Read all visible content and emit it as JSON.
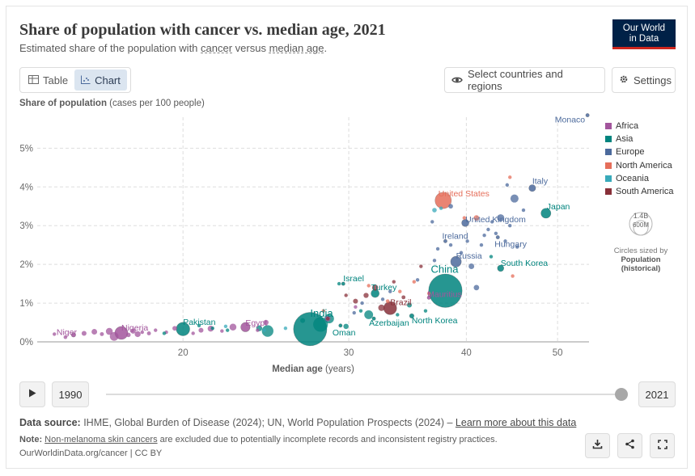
{
  "title": "Share of population with cancer vs. median age, 2021",
  "subtitle": {
    "prefix": "Estimated share of the population with ",
    "link1": "cancer",
    "middle": " versus ",
    "link2": "median age",
    "suffix": "."
  },
  "logo": {
    "line1": "Our World",
    "line2": "in Data"
  },
  "tabs": {
    "table_label": "Table",
    "chart_label": "Chart"
  },
  "buttons": {
    "select_label": "Select countries and regions",
    "settings_label": "Settings"
  },
  "y_axis_label": {
    "bold": "Share of population",
    "rest": " (cases per 100 people)"
  },
  "legend": [
    {
      "label": "Africa",
      "color": "#a2559c"
    },
    {
      "label": "Asia",
      "color": "#00847e"
    },
    {
      "label": "Europe",
      "color": "#4c6a9c"
    },
    {
      "label": "North America",
      "color": "#e56e5a"
    },
    {
      "label": "Oceania",
      "color": "#38aaba"
    },
    {
      "label": "South America",
      "color": "#883039"
    }
  ],
  "size_legend": {
    "big": "1.4B",
    "small": "600M",
    "caption": "Circles sized by",
    "variable": "Population",
    "variable_note": "(historical)"
  },
  "timeline": {
    "start_year": "1990",
    "end_year": "2021",
    "position": 1.0
  },
  "source": {
    "label": "Data source:",
    "text": " IHME, Global Burden of Disease (2024); UN, World Population Prospects (2024) – ",
    "link": "Learn more about this data"
  },
  "note": {
    "label": "Note:",
    "link": "Non-melanoma skin cancers",
    "text": " are excluded due to potentially incomplete records and inconsistent registry practices."
  },
  "footer": "OurWorldinData.org/cancer | CC BY",
  "chart_data": {
    "type": "scatter",
    "title": "Share of population with cancer vs. median age, 2021",
    "xlabel": "Median age (years)",
    "ylabel": "Share of population (cases per 100 people)",
    "x_scale": "log",
    "xlim": [
      14,
      54
    ],
    "ylim": [
      0,
      5.8
    ],
    "xticks": [
      20,
      30,
      40,
      50
    ],
    "yticks": [
      0,
      1,
      2,
      3,
      4,
      5
    ],
    "ytick_labels": [
      "0%",
      "1%",
      "2%",
      "3%",
      "4%",
      "5%"
    ],
    "labeled_points": [
      {
        "name": "Monaco",
        "region": "Europe",
        "x": 53.8,
        "y": 5.85,
        "pop": 0.04
      },
      {
        "name": "Italy",
        "region": "Europe",
        "x": 47.0,
        "y": 3.97,
        "pop": 59
      },
      {
        "name": "United States",
        "region": "North America",
        "x": 37.8,
        "y": 3.65,
        "pop": 337
      },
      {
        "name": "Japan",
        "region": "Asia",
        "x": 48.6,
        "y": 3.32,
        "pop": 124
      },
      {
        "name": "United Kingdom",
        "region": "Europe",
        "x": 39.9,
        "y": 3.07,
        "pop": 68
      },
      {
        "name": "Ireland",
        "region": "Europe",
        "x": 38.0,
        "y": 2.6,
        "pop": 5
      },
      {
        "name": "Hungary",
        "region": "Europe",
        "x": 43.2,
        "y": 2.7,
        "pop": 10
      },
      {
        "name": "Russia",
        "region": "Europe",
        "x": 39.0,
        "y": 2.07,
        "pop": 145
      },
      {
        "name": "South Korea",
        "region": "Asia",
        "x": 43.5,
        "y": 1.9,
        "pop": 52
      },
      {
        "name": "Israel",
        "region": "Asia",
        "x": 29.6,
        "y": 1.5,
        "pop": 9
      },
      {
        "name": "China",
        "region": "Asia",
        "x": 38.0,
        "y": 1.32,
        "pop": 1420
      },
      {
        "name": "Turkey",
        "region": "Asia",
        "x": 32.0,
        "y": 1.25,
        "pop": 85
      },
      {
        "name": "Mauritius",
        "region": "Africa",
        "x": 36.5,
        "y": 1.14,
        "pop": 1.3
      },
      {
        "name": "Brazil",
        "region": "South America",
        "x": 33.2,
        "y": 0.87,
        "pop": 214
      },
      {
        "name": "North Korea",
        "region": "Asia",
        "x": 35.0,
        "y": 0.67,
        "pop": 26
      },
      {
        "name": "Azerbaijan",
        "region": "Asia",
        "x": 31.9,
        "y": 0.6,
        "pop": 10
      },
      {
        "name": "India",
        "region": "Asia",
        "x": 27.3,
        "y": 0.33,
        "pop": 1410
      },
      {
        "name": "Oman",
        "region": "Asia",
        "x": 29.4,
        "y": 0.42,
        "pop": 4.5
      },
      {
        "name": "Egypt",
        "region": "Africa",
        "x": 23.3,
        "y": 0.38,
        "pop": 110
      },
      {
        "name": "Pakistan",
        "region": "Asia",
        "x": 20.0,
        "y": 0.33,
        "pop": 231
      },
      {
        "name": "Nigeria",
        "region": "Africa",
        "x": 17.2,
        "y": 0.23,
        "pop": 213
      },
      {
        "name": "Niger",
        "region": "Africa",
        "x": 15.3,
        "y": 0.18,
        "pop": 25
      }
    ],
    "other_points": [
      {
        "region": "Africa",
        "x": 14.6,
        "y": 0.2,
        "pop": 15
      },
      {
        "region": "Africa",
        "x": 15.0,
        "y": 0.12,
        "pop": 17
      },
      {
        "region": "Africa",
        "x": 15.7,
        "y": 0.22,
        "pop": 30
      },
      {
        "region": "Africa",
        "x": 16.1,
        "y": 0.26,
        "pop": 40
      },
      {
        "region": "Africa",
        "x": 16.4,
        "y": 0.2,
        "pop": 20
      },
      {
        "region": "Africa",
        "x": 16.7,
        "y": 0.27,
        "pop": 60
      },
      {
        "region": "Africa",
        "x": 16.9,
        "y": 0.14,
        "pop": 95
      },
      {
        "region": "Africa",
        "x": 17.5,
        "y": 0.18,
        "pop": 25
      },
      {
        "region": "Africa",
        "x": 17.7,
        "y": 0.28,
        "pop": 35
      },
      {
        "region": "Africa",
        "x": 17.9,
        "y": 0.2,
        "pop": 45
      },
      {
        "region": "Africa",
        "x": 18.1,
        "y": 0.25,
        "pop": 12
      },
      {
        "region": "Africa",
        "x": 18.4,
        "y": 0.22,
        "pop": 20
      },
      {
        "region": "Africa",
        "x": 18.7,
        "y": 0.3,
        "pop": 8
      },
      {
        "region": "Africa",
        "x": 19.2,
        "y": 0.25,
        "pop": 15
      },
      {
        "region": "Africa",
        "x": 19.6,
        "y": 0.35,
        "pop": 28
      },
      {
        "region": "Africa",
        "x": 20.5,
        "y": 0.22,
        "pop": 10
      },
      {
        "region": "Africa",
        "x": 20.9,
        "y": 0.3,
        "pop": 30
      },
      {
        "region": "Africa",
        "x": 21.4,
        "y": 0.34,
        "pop": 45
      },
      {
        "region": "Africa",
        "x": 22.0,
        "y": 0.28,
        "pop": 12
      },
      {
        "region": "Africa",
        "x": 22.6,
        "y": 0.38,
        "pop": 60
      },
      {
        "region": "Africa",
        "x": 24.0,
        "y": 0.3,
        "pop": 12
      },
      {
        "region": "Africa",
        "x": 24.5,
        "y": 0.5,
        "pop": 35
      },
      {
        "region": "Africa",
        "x": 28.5,
        "y": 0.6,
        "pop": 40
      },
      {
        "region": "Africa",
        "x": 30.5,
        "y": 0.9,
        "pop": 12
      },
      {
        "region": "Asia",
        "x": 19.1,
        "y": 0.22,
        "pop": 3
      },
      {
        "region": "Asia",
        "x": 20.8,
        "y": 0.42,
        "pop": 8
      },
      {
        "region": "Asia",
        "x": 21.5,
        "y": 0.35,
        "pop": 5
      },
      {
        "region": "Asia",
        "x": 22.3,
        "y": 0.3,
        "pop": 4
      },
      {
        "region": "Asia",
        "x": 24.1,
        "y": 0.35,
        "pop": 45
      },
      {
        "region": "Asia",
        "x": 24.6,
        "y": 0.28,
        "pop": 170
      },
      {
        "region": "Asia",
        "x": 26.8,
        "y": 0.55,
        "pop": 30
      },
      {
        "region": "Asia",
        "x": 28.0,
        "y": 0.45,
        "pop": 275
      },
      {
        "region": "Asia",
        "x": 28.6,
        "y": 0.6,
        "pop": 115
      },
      {
        "region": "Asia",
        "x": 29.8,
        "y": 0.4,
        "pop": 35
      },
      {
        "region": "Asia",
        "x": 30.9,
        "y": 0.8,
        "pop": 10
      },
      {
        "region": "Asia",
        "x": 31.5,
        "y": 0.7,
        "pop": 98
      },
      {
        "region": "Asia",
        "x": 33.8,
        "y": 0.7,
        "pop": 6
      },
      {
        "region": "Asia",
        "x": 34.8,
        "y": 0.95,
        "pop": 30
      },
      {
        "region": "Asia",
        "x": 36.2,
        "y": 0.8,
        "pop": 4
      },
      {
        "region": "Asia",
        "x": 29.3,
        "y": 1.5,
        "pop": 2
      },
      {
        "region": "Asia",
        "x": 42.5,
        "y": 2.2,
        "pop": 6
      },
      {
        "region": "Europe",
        "x": 30.4,
        "y": 0.75,
        "pop": 3
      },
      {
        "region": "Europe",
        "x": 31.0,
        "y": 1.0,
        "pop": 2.8
      },
      {
        "region": "Europe",
        "x": 32.6,
        "y": 1.1,
        "pop": 6
      },
      {
        "region": "Europe",
        "x": 33.2,
        "y": 1.3,
        "pop": 2
      },
      {
        "region": "Europe",
        "x": 35.5,
        "y": 1.6,
        "pop": 1.8
      },
      {
        "region": "Europe",
        "x": 37.0,
        "y": 2.1,
        "pop": 3
      },
      {
        "region": "Europe",
        "x": 37.3,
        "y": 2.4,
        "pop": 2
      },
      {
        "region": "Europe",
        "x": 38.5,
        "y": 2.5,
        "pop": 9
      },
      {
        "region": "Europe",
        "x": 39.5,
        "y": 2.3,
        "pop": 3
      },
      {
        "region": "Europe",
        "x": 40.1,
        "y": 2.6,
        "pop": 5
      },
      {
        "region": "Europe",
        "x": 40.5,
        "y": 1.95,
        "pop": 40
      },
      {
        "region": "Europe",
        "x": 41.0,
        "y": 1.4,
        "pop": 38
      },
      {
        "region": "Europe",
        "x": 41.5,
        "y": 2.5,
        "pop": 4
      },
      {
        "region": "Europe",
        "x": 41.8,
        "y": 2.75,
        "pop": 8
      },
      {
        "region": "Europe",
        "x": 42.2,
        "y": 2.9,
        "pop": 6
      },
      {
        "region": "Europe",
        "x": 42.6,
        "y": 3.1,
        "pop": 5
      },
      {
        "region": "Europe",
        "x": 43.0,
        "y": 2.8,
        "pop": 10
      },
      {
        "region": "Europe",
        "x": 43.5,
        "y": 3.2,
        "pop": 67
      },
      {
        "region": "Europe",
        "x": 44.0,
        "y": 2.6,
        "pop": 10
      },
      {
        "region": "Europe",
        "x": 44.5,
        "y": 3.0,
        "pop": 9
      },
      {
        "region": "Europe",
        "x": 45.0,
        "y": 3.7,
        "pop": 83
      },
      {
        "region": "Europe",
        "x": 45.3,
        "y": 2.45,
        "pop": 7
      },
      {
        "region": "Europe",
        "x": 46.0,
        "y": 3.4,
        "pop": 10
      },
      {
        "region": "Europe",
        "x": 44.2,
        "y": 4.05,
        "pop": 5
      },
      {
        "region": "Europe",
        "x": 38.5,
        "y": 3.5,
        "pop": 26
      },
      {
        "region": "Europe",
        "x": 36.8,
        "y": 3.1,
        "pop": 5
      },
      {
        "region": "North America",
        "x": 31.5,
        "y": 1.45,
        "pop": 2
      },
      {
        "region": "North America",
        "x": 33.0,
        "y": 1.05,
        "pop": 18
      },
      {
        "region": "North America",
        "x": 34.0,
        "y": 1.3,
        "pop": 1
      },
      {
        "region": "North America",
        "x": 35.2,
        "y": 1.55,
        "pop": 3
      },
      {
        "region": "North America",
        "x": 36.5,
        "y": 1.25,
        "pop": 1
      },
      {
        "region": "North America",
        "x": 41.0,
        "y": 3.2,
        "pop": 38
      },
      {
        "region": "North America",
        "x": 44.5,
        "y": 4.25,
        "pop": 1
      },
      {
        "region": "North America",
        "x": 44.8,
        "y": 1.7,
        "pop": 1
      },
      {
        "region": "North America",
        "x": 39.8,
        "y": 3.2,
        "pop": 1
      },
      {
        "region": "North America",
        "x": 28.2,
        "y": 0.8,
        "pop": 1
      },
      {
        "region": "Oceania",
        "x": 22.2,
        "y": 0.4,
        "pop": 1
      },
      {
        "region": "Oceania",
        "x": 24.4,
        "y": 0.3,
        "pop": 2
      },
      {
        "region": "Oceania",
        "x": 25.7,
        "y": 0.35,
        "pop": 0.3
      },
      {
        "region": "Oceania",
        "x": 37.0,
        "y": 3.4,
        "pop": 26
      },
      {
        "region": "Oceania",
        "x": 37.6,
        "y": 3.45,
        "pop": 5
      },
      {
        "region": "South America",
        "x": 28.5,
        "y": 0.6,
        "pop": 4
      },
      {
        "region": "South America",
        "x": 29.8,
        "y": 1.2,
        "pop": 12
      },
      {
        "region": "South America",
        "x": 30.5,
        "y": 1.05,
        "pop": 30
      },
      {
        "region": "South America",
        "x": 31.3,
        "y": 1.2,
        "pop": 33
      },
      {
        "region": "South America",
        "x": 32.5,
        "y": 0.88,
        "pop": 52
      },
      {
        "region": "South America",
        "x": 34.3,
        "y": 1.15,
        "pop": 19
      },
      {
        "region": "South America",
        "x": 35.8,
        "y": 1.95,
        "pop": 3.4
      },
      {
        "region": "South America",
        "x": 32.0,
        "y": 1.4,
        "pop": 46
      },
      {
        "region": "South America",
        "x": 33.5,
        "y": 1.55,
        "pop": 7
      }
    ]
  }
}
